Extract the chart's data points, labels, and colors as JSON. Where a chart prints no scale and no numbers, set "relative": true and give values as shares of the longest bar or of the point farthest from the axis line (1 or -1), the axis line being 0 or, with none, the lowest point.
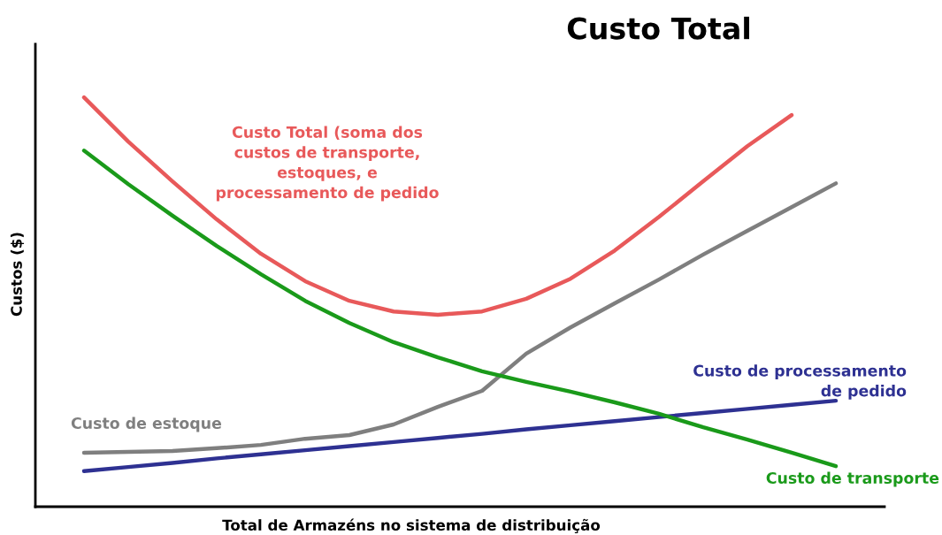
{
  "chart_data": {
    "type": "line",
    "title": "Custo Total",
    "xlabel": "Total de Armazéns no sistema de distribuição",
    "ylabel": "Custos ($)",
    "relative": true,
    "categories": [
      null,
      null,
      null,
      null,
      null,
      null,
      null,
      null,
      null,
      null,
      null,
      null,
      null,
      null,
      null,
      null,
      null,
      null
    ],
    "series": [
      {
        "name": "Custo Total (soma dos\ncustos de transporte,\nestoques, e\nprocessamento de pedido",
        "color": "#e8595a",
        "values": [
          1,
          0.892,
          0.795,
          0.702,
          0.618,
          0.551,
          0.503,
          0.477,
          0.469,
          0.477,
          0.508,
          0.557,
          0.626,
          0.708,
          0.795,
          0.881,
          0.957,
          null
        ]
      },
      {
        "name": "Custo de estoque",
        "color": "#7f7f7f",
        "values": [
          0.132,
          0.134,
          0.136,
          0.143,
          0.151,
          0.166,
          0.175,
          0.201,
          0.244,
          0.283,
          0.374,
          0.438,
          0.497,
          0.555,
          0.616,
          0.674,
          0.732,
          0.79
        ]
      },
      {
        "name": "Custo de processamento\nde pedido",
        "color": "#2e3192",
        "values": [
          0.087,
          0.097,
          0.107,
          0.118,
          0.128,
          0.138,
          0.148,
          0.158,
          0.168,
          0.178,
          0.189,
          0.199,
          0.209,
          0.219,
          0.229,
          0.239,
          0.249,
          0.259
        ]
      },
      {
        "name": "Custo de transporte",
        "color": "#1a9a1a",
        "values": [
          0.87,
          0.788,
          0.711,
          0.637,
          0.568,
          0.503,
          0.449,
          0.402,
          0.365,
          0.331,
          0.305,
          0.281,
          0.255,
          0.227,
          0.194,
          0.164,
          0.132,
          0.099
        ]
      }
    ]
  }
}
